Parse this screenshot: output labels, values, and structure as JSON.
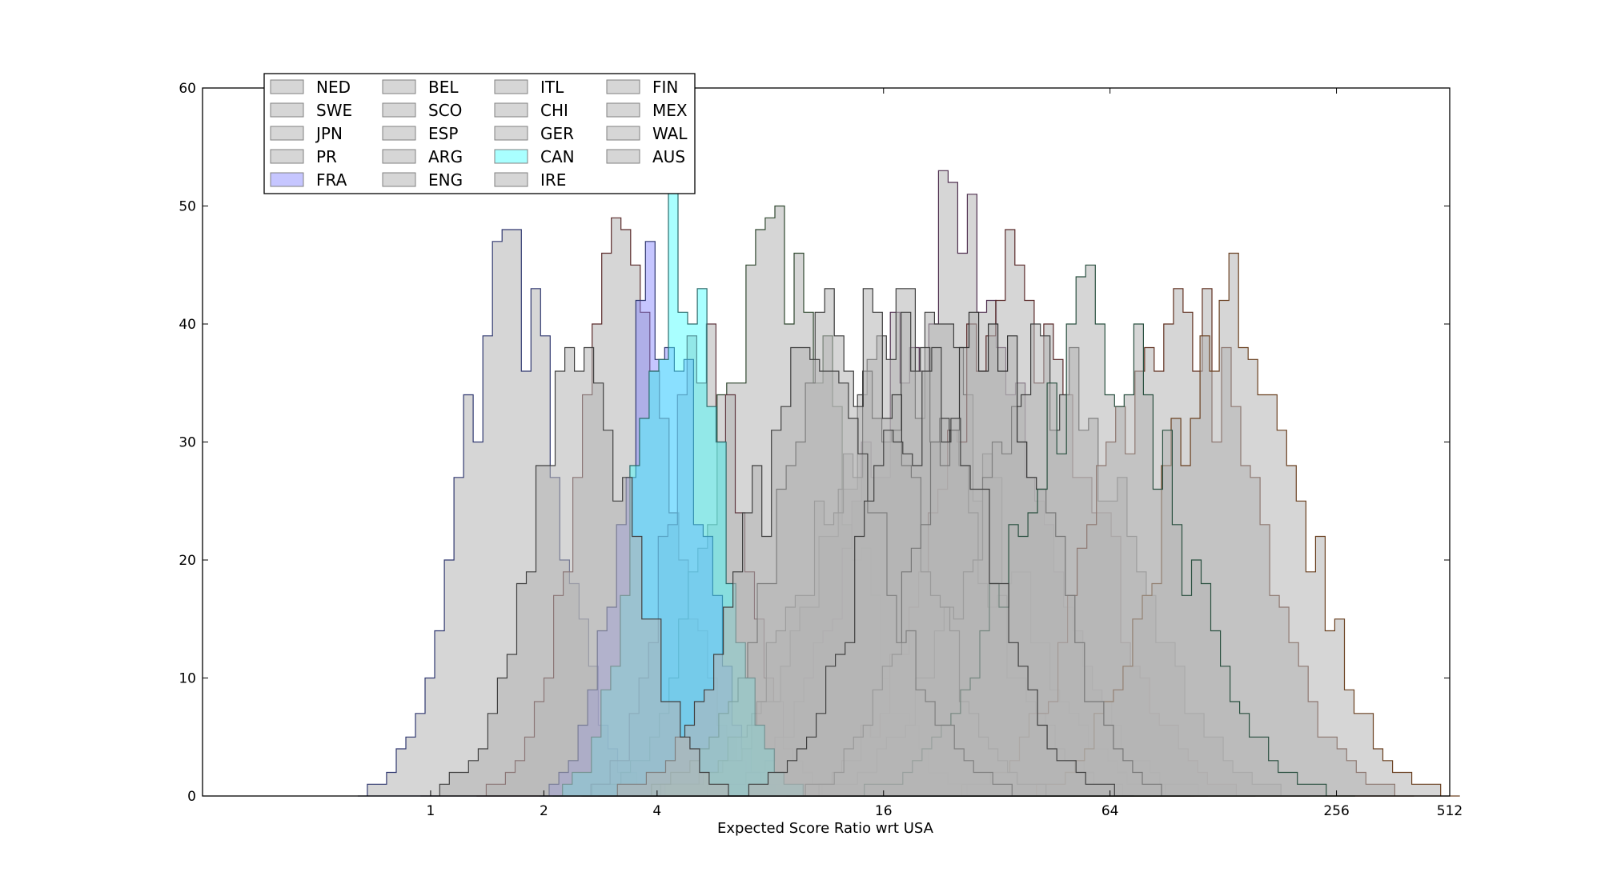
{
  "chart_data": {
    "type": "histogram",
    "xlabel": "Expected Score Ratio wrt USA",
    "ylabel": "",
    "title": "",
    "x_scale": "log2",
    "xlim": [
      0.2475,
      512
    ],
    "ylim": [
      0,
      60
    ],
    "x_ticks": [
      {
        "value": 1,
        "label": "1"
      },
      {
        "value": 2,
        "label": "2"
      },
      {
        "value": 4,
        "label": "4"
      },
      {
        "value": 16,
        "label": "16"
      },
      {
        "value": 64,
        "label": "64"
      },
      {
        "value": 256,
        "label": "256"
      },
      {
        "value": 512,
        "label": "512"
      }
    ],
    "y_ticks": [
      0,
      10,
      20,
      30,
      40,
      50,
      60
    ],
    "grid": false,
    "legend": {
      "placement": "top-left",
      "columns": 4
    },
    "series": [
      {
        "name": "NED",
        "fill": "#b4b4b4",
        "edge": "#303870",
        "log2_center": 0.7,
        "spread": 0.42,
        "peak": 51
      },
      {
        "name": "SWE",
        "fill": "#b4b4b4",
        "edge": "#5a2a2a",
        "log2_center": 1.75,
        "spread": 0.42,
        "peak": 51
      },
      {
        "name": "JPN",
        "fill": "#b4b4b4",
        "edge": "#304830",
        "log2_center": 3.1,
        "spread": 0.55,
        "peak": 52
      },
      {
        "name": "PR",
        "fill": "#b4b4b4",
        "edge": "#603840",
        "log2_center": 2.45,
        "spread": 0.35,
        "peak": 42
      },
      {
        "name": "FRA",
        "fill": "#8080ff",
        "edge": "#303870",
        "log2_center": 2.05,
        "spread": 0.34,
        "peak": 49
      },
      {
        "name": "BEL",
        "fill": "#b4b4b4",
        "edge": "#503050",
        "log2_center": 4.6,
        "spread": 0.7,
        "peak": 52
      },
      {
        "name": "SCO",
        "fill": "#b4b4b4",
        "edge": "#404040",
        "log2_center": 4.3,
        "spread": 0.75,
        "peak": 42
      },
      {
        "name": "ESP",
        "fill": "#b4b4b4",
        "edge": "#5a2a2a",
        "log2_center": 5.2,
        "spread": 0.65,
        "peak": 50
      },
      {
        "name": "ARG",
        "fill": "#b4b4b4",
        "edge": "#404040",
        "log2_center": 4.1,
        "spread": 0.7,
        "peak": 41
      },
      {
        "name": "ENG",
        "fill": "#b4b4b4",
        "edge": "#404040",
        "log2_center": 5.5,
        "spread": 0.7,
        "peak": 40
      },
      {
        "name": "ITL",
        "fill": "#b4b4b4",
        "edge": "#603020",
        "log2_center": 6.6,
        "spread": 0.65,
        "peak": 47
      },
      {
        "name": "CHI",
        "fill": "#b4b4b4",
        "edge": "#6a4020",
        "log2_center": 7.1,
        "spread": 0.6,
        "peak": 48
      },
      {
        "name": "GER",
        "fill": "#b4b4b4",
        "edge": "#3a3a3a",
        "log2_center": 3.7,
        "spread": 0.6,
        "peak": 44
      },
      {
        "name": "CAN",
        "fill": "#40ffff",
        "edge": "#2c6a6a",
        "log2_center": 2.2,
        "spread": 0.35,
        "peak": 52
      },
      {
        "name": "IRE",
        "fill": "#b4b4b4",
        "edge": "#303030",
        "log2_center": 4.9,
        "spread": 0.55,
        "peak": 43
      },
      {
        "name": "FIN",
        "fill": "#b4b4b4",
        "edge": "#2a5040",
        "log2_center": 5.9,
        "spread": 0.7,
        "peak": 44
      },
      {
        "name": "MEX",
        "fill": "#b4b4b4",
        "edge": "#404040",
        "log2_center": 3.4,
        "spread": 0.6,
        "peak": 40
      },
      {
        "name": "WAL",
        "fill": "#b4b4b4",
        "edge": "#404040",
        "log2_center": 4.4,
        "spread": 0.55,
        "peak": 40
      },
      {
        "name": "AUS",
        "fill": "#b4b4b4",
        "edge": "#404040",
        "log2_center": 1.35,
        "spread": 0.45,
        "peak": 40
      }
    ]
  }
}
